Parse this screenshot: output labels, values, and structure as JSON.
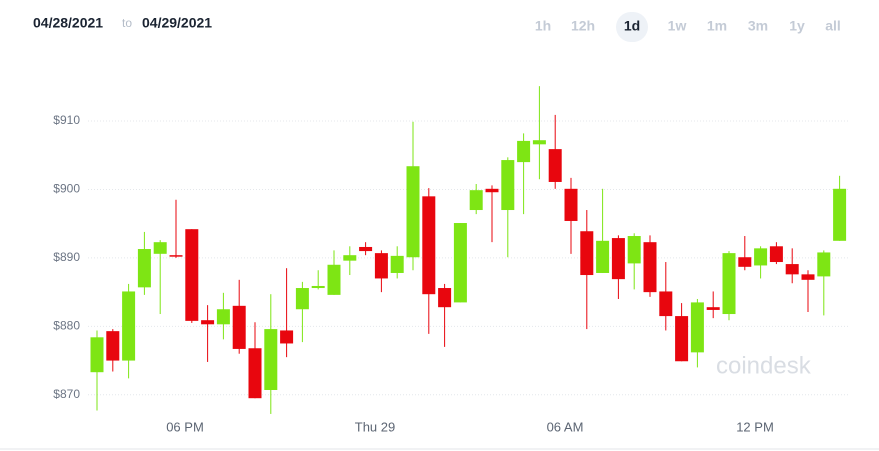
{
  "range": {
    "from": "04/28/2021",
    "sep": "to",
    "to": "04/29/2021"
  },
  "timeframes": [
    "1h",
    "12h",
    "1d",
    "1w",
    "1m",
    "3m",
    "1y",
    "all"
  ],
  "selected_timeframe": 2,
  "watermark": "coindesk",
  "chart_data": {
    "type": "candlestick",
    "up_color": "#7ee514",
    "down_color": "#e8060e",
    "grid": true,
    "ylim": [
      865,
      916
    ],
    "yticks": [
      {
        "value": 870,
        "label": "$870"
      },
      {
        "value": 880,
        "label": "$880"
      },
      {
        "value": 890,
        "label": "$890"
      },
      {
        "value": 900,
        "label": "$900"
      },
      {
        "value": 910,
        "label": "$910"
      }
    ],
    "xtick_labels": [
      "06 PM",
      "Thu 29",
      "06 AM",
      "12 PM"
    ],
    "categories": [
      null,
      null,
      null,
      null,
      null,
      null,
      null,
      null,
      null,
      null,
      null,
      null,
      null,
      null,
      null,
      null,
      null,
      null,
      null,
      null,
      null,
      null,
      null,
      null,
      null,
      null,
      null,
      null,
      null,
      null,
      null,
      null,
      null,
      null,
      null,
      null,
      null,
      null,
      null,
      null,
      null,
      null,
      null,
      null,
      null,
      null,
      null,
      null
    ],
    "open": [
      873.3,
      879.3,
      875.0,
      885.7,
      890.6,
      890.4,
      894.2,
      880.9,
      880.3,
      883.0,
      876.8,
      870.7,
      879.4,
      882.5,
      885.6,
      884.6,
      889.6,
      891.6,
      890.7,
      887.8,
      890.1,
      899.0,
      885.6,
      883.5,
      897.0,
      900.1,
      897.0,
      904.0,
      906.6,
      905.9,
      900.1,
      893.9,
      887.8,
      892.9,
      889.2,
      892.3,
      885.1,
      881.5,
      876.2,
      882.8,
      881.8,
      890.1,
      888.9,
      891.7,
      889.1,
      887.6,
      887.3,
      892.5
    ],
    "high": [
      879.4,
      879.6,
      886.2,
      893.8,
      892.6,
      898.5,
      894.2,
      883.1,
      884.9,
      886.8,
      880.6,
      884.7,
      888.5,
      886.5,
      888.2,
      891.1,
      891.7,
      892.3,
      891.1,
      891.7,
      909.9,
      900.2,
      886.2,
      895.1,
      900.8,
      900.6,
      904.7,
      908.2,
      915.1,
      910.9,
      901.7,
      897.0,
      900.1,
      893.3,
      893.6,
      893.3,
      889.4,
      883.4,
      884.0,
      885.1,
      891.0,
      893.2,
      891.7,
      892.3,
      891.4,
      888.2,
      891.1,
      902.0
    ],
    "low": [
      867.7,
      873.4,
      872.4,
      884.6,
      881.8,
      890.0,
      880.5,
      874.8,
      878.1,
      876.0,
      869.5,
      867.2,
      875.5,
      877.7,
      885.4,
      884.6,
      887.5,
      890.4,
      885.0,
      887.0,
      888.2,
      878.9,
      877.0,
      883.5,
      896.4,
      892.3,
      890.1,
      896.4,
      901.5,
      900.1,
      890.6,
      879.6,
      887.8,
      884.0,
      885.4,
      884.3,
      879.4,
      874.9,
      874.0,
      881.2,
      880.9,
      888.2,
      887.0,
      889.1,
      886.3,
      882.1,
      881.6,
      892.5
    ],
    "close": [
      878.4,
      875.0,
      885.1,
      891.3,
      892.3,
      890.2,
      880.8,
      880.3,
      882.5,
      876.7,
      869.5,
      879.6,
      877.5,
      885.6,
      885.9,
      889.0,
      890.4,
      891.0,
      887.0,
      890.3,
      903.4,
      884.7,
      882.8,
      895.1,
      899.9,
      899.6,
      904.3,
      907.1,
      907.2,
      901.1,
      895.4,
      887.5,
      892.5,
      886.9,
      893.2,
      885.0,
      881.5,
      874.9,
      883.5,
      882.4,
      890.7,
      888.7,
      891.4,
      889.4,
      887.6,
      886.8,
      890.8,
      900.1
    ]
  }
}
